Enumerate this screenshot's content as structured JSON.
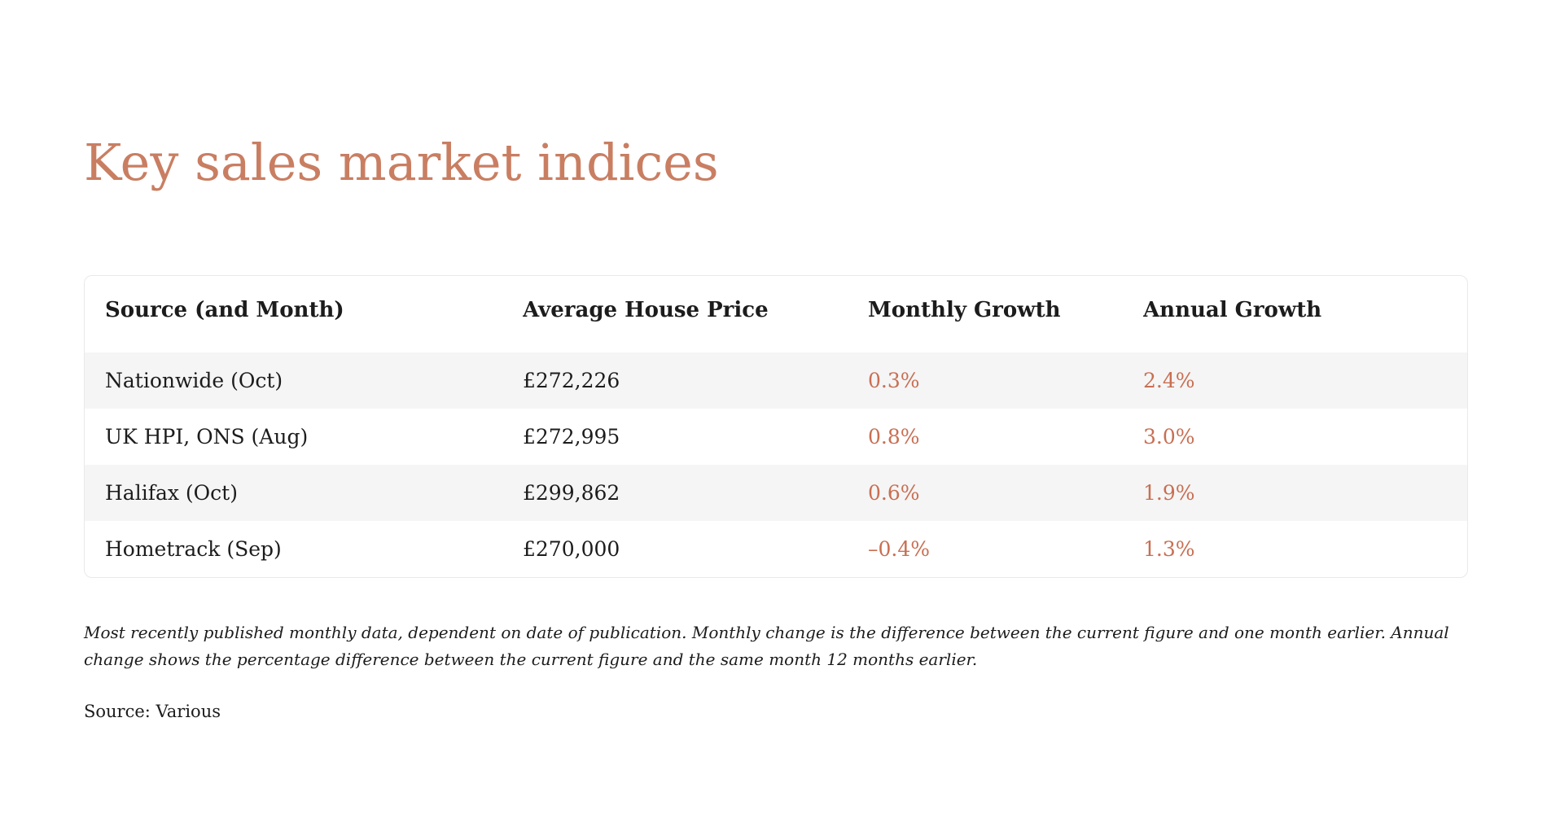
{
  "page": {
    "title": "Key sales market indices"
  },
  "table": {
    "columns": [
      "Source (and Month)",
      "Average House Price",
      "Monthly Growth",
      "Annual Growth"
    ],
    "rows": [
      {
        "source": "Nationwide (Oct)",
        "price": "£272,226",
        "monthly": "0.3%",
        "annual": "2.4%"
      },
      {
        "source": "UK HPI, ONS (Aug)",
        "price": "£272,995",
        "monthly": "0.8%",
        "annual": "3.0%"
      },
      {
        "source": "Halifax (Oct)",
        "price": "£299,862",
        "monthly": "0.6%",
        "annual": "1.9%"
      },
      {
        "source": "Hometrack (Sep)",
        "price": "£270,000",
        "monthly": "–0.4%",
        "annual": "1.3%"
      }
    ]
  },
  "footnote": {
    "lines": [
      "Most recently published monthly data, dependent on date of publication. Monthly change is the difference between the current figure and one month earlier. Annual",
      "change shows the percentage difference between the current figure and the same month 12 months earlier."
    ]
  },
  "source_line": "Source: Various",
  "colors": {
    "title_accent": "#C97E62",
    "value_accent": "#C86F53",
    "text": "#1C1C1C",
    "row_stripe": "#F5F5F5",
    "table_border": "#E9E9E9",
    "background": "#FFFFFF"
  }
}
